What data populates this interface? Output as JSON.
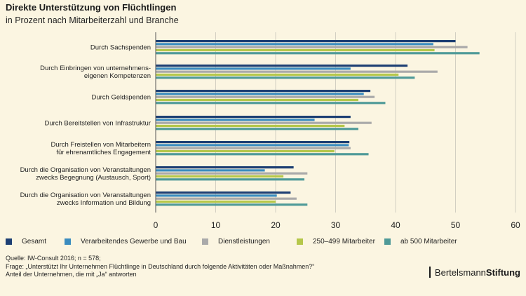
{
  "header": {
    "title": "Direkte Unterstützung von Flüchtlingen",
    "subtitle": "in Prozent nach Mitarbeiterzahl und Branche"
  },
  "chart_data": {
    "type": "bar",
    "orientation": "horizontal",
    "categories": [
      [
        "Durch Sachspenden"
      ],
      [
        "Durch Einbringen von unternehmens-",
        "eigenen Kompetenzen"
      ],
      [
        "Durch Geldspenden"
      ],
      [
        "Durch Bereitstellen von Infrastruktur"
      ],
      [
        "Durch Freistellen von Mitarbeitern",
        "für ehrenamtliches Engagement"
      ],
      [
        "Durch die Organisation von Veranstaltungen",
        "zwecks Begegnung (Austausch, Sport)"
      ],
      [
        "Durch die Organisation von Veranstaltungen",
        "zwecks Information und Bildung"
      ]
    ],
    "series": [
      {
        "name": "Gesamt",
        "color": "#1d3f73",
        "values": [
          50,
          42,
          35.8,
          32.5,
          32.3,
          23,
          22.5
        ]
      },
      {
        "name": "Verarbeitendes Gewerbe und Bau",
        "color": "#3a8cbf",
        "values": [
          46.3,
          32.5,
          34.7,
          26.5,
          32.2,
          18.2,
          20.2
        ]
      },
      {
        "name": "Dienstleistungen",
        "color": "#aaaaaa",
        "values": [
          52,
          47,
          36.5,
          36,
          32.5,
          25.3,
          23.5
        ]
      },
      {
        "name": "250–499 Mitarbeiter",
        "color": "#b5c74a",
        "values": [
          46.5,
          40.5,
          33.8,
          31.5,
          29.8,
          21.3,
          20
        ]
      },
      {
        "name": "ab 500 Mitarbeiter",
        "color": "#4f9a98",
        "values": [
          54,
          43.2,
          38.3,
          33.8,
          35.5,
          24.8,
          25.3
        ]
      }
    ],
    "xlim": [
      0,
      60
    ],
    "xticks": [
      "0",
      "10",
      "20",
      "30",
      "40",
      "50",
      "60"
    ],
    "grid": "vertical",
    "legend": "bottom"
  },
  "footer": {
    "source": "Quelle: IW-Consult 2016; n = 578;",
    "question": "Frage: „Unterstützt Ihr Unternehmen Flüchtlinge in Deutschland durch folgende Aktivitäten oder Maßnahmen?“",
    "note": "Anteil der Unternehmen, die mit „Ja“ antworten"
  },
  "brand": {
    "part1": "Bertelsmann",
    "part2": "Stiftung"
  }
}
